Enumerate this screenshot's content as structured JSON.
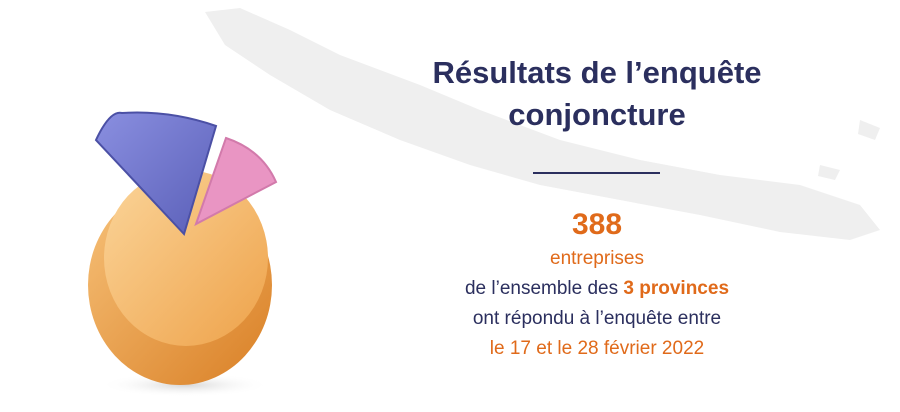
{
  "title": {
    "lines": [
      "Résultats de l’enquête",
      "conjoncture"
    ]
  },
  "stats": {
    "count": 388,
    "unit": "entreprises",
    "scope_prefix": "de l’ensemble des",
    "scope_highlight": "3 provinces",
    "response": "ont répondu à l’enquête entre",
    "period": "le 17 et le 28 février 2022"
  }
}
